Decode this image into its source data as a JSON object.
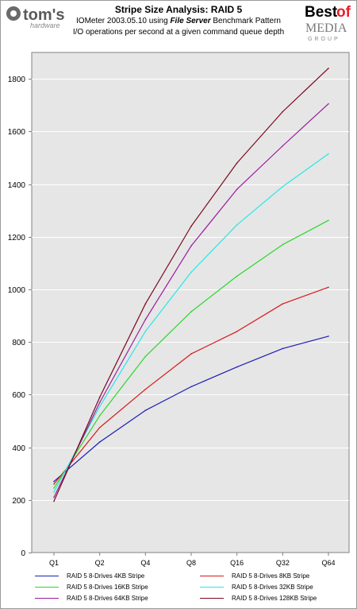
{
  "header": {
    "title": "Stripe Size Analysis: RAID 5",
    "subtitle_prefix": "IOMeter 2003.05.10 using ",
    "subtitle_pattern": "File Server",
    "subtitle_suffix": " Benchmark Pattern",
    "subtitle2": "I/O operations per second at a given command queue depth",
    "logo_left_main": "tom's",
    "logo_left_sub": "hardware",
    "logo_right_best": "Best",
    "logo_right_of": "of",
    "logo_right_media": "MEDIA",
    "logo_right_group": "GROUP"
  },
  "colors": {
    "plot_bg": "#e6e6e6",
    "grid": "#ffffff",
    "series": [
      "#1f1fb4",
      "#d81818",
      "#2ad82a",
      "#2ae6e6",
      "#9b1a9b",
      "#7a0a1e"
    ]
  },
  "chart_data": {
    "type": "line",
    "title": "Stripe Size Analysis: RAID 5",
    "subtitle": "IOMeter 2003.05.10 using File Server Benchmark Pattern — I/O operations per second at a given command queue depth",
    "xlabel": "",
    "ylabel": "",
    "categories": [
      "Q1",
      "Q2",
      "Q4",
      "Q8",
      "Q16",
      "Q32",
      "Q64"
    ],
    "ylim": [
      0,
      1900
    ],
    "yticks": [
      0,
      200,
      400,
      600,
      800,
      1000,
      1200,
      1400,
      1600,
      1800
    ],
    "grid": true,
    "legend_position": "bottom",
    "series": [
      {
        "name": "RAID 5 8-Drives 4KB Stripe",
        "values": [
          270,
          420,
          540,
          630,
          705,
          775,
          822
        ]
      },
      {
        "name": "RAID 5 8-Drives 8KB Stripe",
        "values": [
          260,
          475,
          620,
          755,
          840,
          945,
          1008
        ]
      },
      {
        "name": "RAID 5 8-Drives 16KB Stripe",
        "values": [
          245,
          520,
          745,
          915,
          1050,
          1170,
          1262
        ]
      },
      {
        "name": "RAID 5 8-Drives 32KB Stripe",
        "values": [
          230,
          555,
          840,
          1065,
          1245,
          1390,
          1515
        ]
      },
      {
        "name": "RAID 5 8-Drives 64KB Stripe",
        "values": [
          210,
          570,
          885,
          1165,
          1380,
          1545,
          1705
        ]
      },
      {
        "name": "RAID 5 8-Drives 128KB Stripe",
        "values": [
          195,
          590,
          945,
          1240,
          1480,
          1675,
          1840
        ]
      }
    ]
  }
}
